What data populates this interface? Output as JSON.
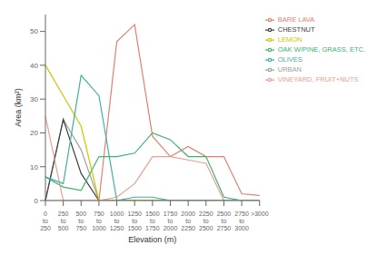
{
  "chart_data": {
    "type": "line",
    "xlabel": "Elevation (m)",
    "ylabel": "Area (km²)",
    "categories": [
      "0\nto\n250",
      "250\nto\n500",
      "500\nto\n750",
      "750\nto\n1000",
      "1000\nto\n1250",
      "1250\nto\n1500",
      "1500\nto\n1750",
      "1750\nto\n2000",
      "2000\nto\n2250",
      "2250\nto\n2500",
      "2500\nto\n2750",
      "2750\nto\n3000",
      ">3000"
    ],
    "series": [
      {
        "name": "BARE LAVA",
        "color": "#e08070",
        "values": [
          0,
          0,
          0,
          0,
          47,
          52,
          19,
          13,
          16,
          13,
          13,
          2,
          1.5
        ]
      },
      {
        "name": "URBAN",
        "color": "#a0a0a0",
        "values": [
          0,
          24,
          15,
          0,
          0,
          0,
          0,
          0,
          0,
          0,
          0,
          0,
          0
        ]
      },
      {
        "name": "CHESTNUT",
        "color": "#404040",
        "values": [
          0,
          24,
          8,
          0,
          0,
          0,
          0,
          0,
          0,
          0,
          0,
          0,
          0
        ]
      },
      {
        "name": "OAK W/PINE, GRASS, ETC.",
        "color": "#3cb371",
        "values": [
          7,
          4,
          3,
          13,
          13,
          14,
          20,
          18,
          13,
          13,
          1,
          0,
          0
        ]
      },
      {
        "name": "LEMON",
        "color": "#c8c800",
        "values": [
          40,
          31,
          22,
          0,
          0,
          0,
          0,
          0,
          0,
          0,
          0,
          0,
          0
        ]
      },
      {
        "name": "VINEYARD, FRUIT+NUTS",
        "color": "#e8a090",
        "values": [
          25,
          0,
          0,
          0,
          1,
          5,
          13,
          13,
          12,
          11,
          0,
          0,
          0
        ]
      },
      {
        "name": "OLIVES",
        "color": "#40b0a0",
        "values": [
          7,
          5,
          37,
          31,
          0,
          1,
          1,
          0,
          0,
          0,
          0,
          0,
          0
        ]
      }
    ],
    "ylim": [
      0,
      55
    ],
    "yticks": [
      0,
      10,
      20,
      30,
      40,
      50
    ],
    "grid": false,
    "legend": "upper right"
  }
}
